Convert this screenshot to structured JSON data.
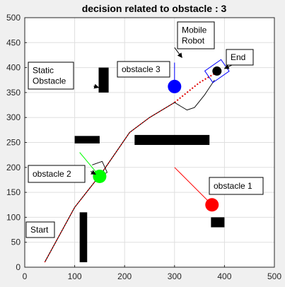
{
  "chart_data": {
    "type": "scatter",
    "title": "decision related to obstacle  : 3",
    "xlim": [
      0,
      500
    ],
    "ylim": [
      0,
      500
    ],
    "x_ticks": [
      0,
      100,
      200,
      300,
      400,
      500
    ],
    "y_ticks": [
      0,
      50,
      100,
      150,
      200,
      250,
      300,
      350,
      400,
      450,
      500
    ],
    "grid": true,
    "static_obstacles": [
      {
        "x": [
          110,
          125
        ],
        "y": [
          10,
          110
        ]
      },
      {
        "x": [
          100,
          150
        ],
        "y": [
          248,
          263
        ]
      },
      {
        "x": [
          148,
          168
        ],
        "y": [
          350,
          400
        ]
      },
      {
        "x": [
          220,
          370
        ],
        "y": [
          245,
          265
        ]
      },
      {
        "x": [
          373,
          400
        ],
        "y": [
          80,
          100
        ]
      }
    ],
    "path": [
      [
        40,
        10
      ],
      [
        100,
        120
      ],
      [
        155,
        190
      ],
      [
        210,
        270
      ],
      [
        250,
        300
      ],
      [
        300,
        330
      ],
      [
        350,
        370
      ],
      [
        392,
        395
      ]
    ],
    "path_split_index": 5,
    "dynamic_obstacles": [
      {
        "name": "obstacle 1",
        "x": 375,
        "y": 125,
        "color": "#ff0000",
        "heading": [
          [
            375,
            125
          ],
          [
            300,
            200
          ]
        ]
      },
      {
        "name": "obstacle 2",
        "x": 150,
        "y": 182,
        "color": "#00ff00",
        "heading": [
          [
            150,
            182
          ],
          [
            110,
            230
          ]
        ]
      },
      {
        "name": "obstacle 3",
        "x": 300,
        "y": 362,
        "color": "#0000ff",
        "heading": [
          [
            300,
            362
          ],
          [
            300,
            410
          ]
        ]
      }
    ],
    "avoid_loops": [
      [
        [
          135,
          205
        ],
        [
          155,
          212
        ],
        [
          165,
          190
        ],
        [
          145,
          178
        ],
        [
          140,
          185
        ],
        [
          150,
          190
        ]
      ],
      [
        [
          300,
          330
        ],
        [
          325,
          315
        ],
        [
          340,
          320
        ],
        [
          360,
          345
        ],
        [
          380,
          375
        ]
      ]
    ],
    "robot": {
      "x": 385,
      "y": 393,
      "box_angle": -35
    },
    "annotations": [
      {
        "key": "static",
        "lines": [
          "Static",
          "Obstacle"
        ],
        "arrow_from": [
          138,
          363
        ],
        "arrow_to": [
          148,
          360
        ]
      },
      {
        "key": "ob3",
        "lines": [
          "obstacle 3"
        ],
        "arrow_from": null,
        "arrow_to": null
      },
      {
        "key": "mobile",
        "lines": [
          "Mobile",
          "Robot"
        ],
        "arrow_from": [
          300,
          440
        ],
        "arrow_to": [
          315,
          420
        ]
      },
      {
        "key": "end",
        "lines": [
          "End"
        ],
        "arrow_from": [
          415,
          405
        ],
        "arrow_to": [
          400,
          398
        ]
      },
      {
        "key": "ob2",
        "lines": [
          "obstacle 2"
        ],
        "arrow_from": [
          132,
          192
        ],
        "arrow_to": [
          142,
          186
        ]
      },
      {
        "key": "ob1",
        "lines": [
          "obstacle 1"
        ],
        "arrow_from": null,
        "arrow_to": null
      },
      {
        "key": "start",
        "lines": [
          "Start"
        ],
        "arrow_from": null,
        "arrow_to": null
      }
    ]
  }
}
